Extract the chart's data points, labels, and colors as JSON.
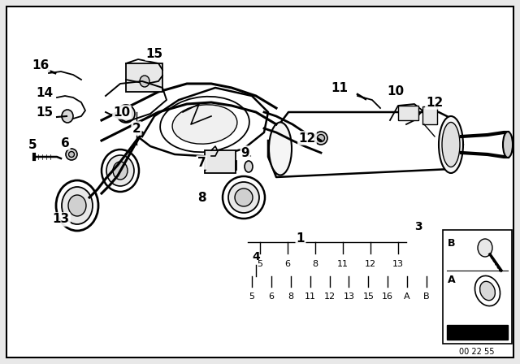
{
  "bg_color": "#e8e8e8",
  "diagram_bg": "#ffffff",
  "line_color": "#000000",
  "text_color": "#000000",
  "font_size_label": 11,
  "font_size_small": 8,
  "footer_text": "00 22 55",
  "legend3_items": [
    "5",
    "6",
    "8",
    "11",
    "12",
    "13"
  ],
  "legend4_items": [
    "5",
    "6",
    "8",
    "11",
    "12",
    "13",
    "15",
    "16",
    "A",
    "B"
  ],
  "inset_labels": [
    "B",
    "A"
  ]
}
